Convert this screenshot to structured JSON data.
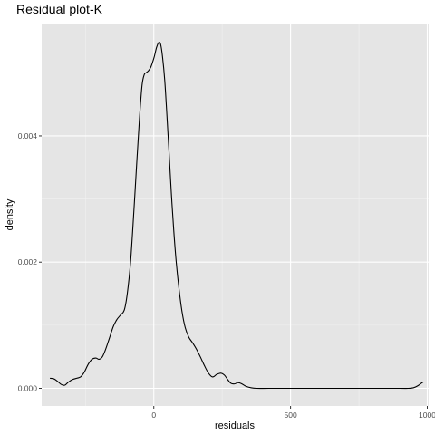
{
  "chart_data": {
    "type": "line",
    "title": "Residual plot-K",
    "xlabel": "residuals",
    "ylabel": "density",
    "xlim": [
      -410,
      1005
    ],
    "ylim": [
      -0.00028,
      0.00578
    ],
    "x_ticks": [
      0,
      500,
      1000
    ],
    "x_tick_labels": [
      "0",
      "500",
      "1000"
    ],
    "y_ticks": [
      0,
      0.002,
      0.004
    ],
    "y_tick_labels": [
      "0.000",
      "0.002",
      "0.004"
    ],
    "grid": true,
    "legend": "none",
    "colors": {
      "panel_background": "#e5e5e5",
      "grid_major": "#ffffff",
      "grid_minor": "#f2f2f2",
      "line": "#000000"
    },
    "series": [
      {
        "values": [
          [
            -380,
            0.00016
          ],
          [
            -365,
            0.00015
          ],
          [
            -352,
            0.00011
          ],
          [
            -338,
            6e-05
          ],
          [
            -325,
            5e-05
          ],
          [
            -312,
            0.0001
          ],
          [
            -297,
            0.00014
          ],
          [
            -282,
            0.00016
          ],
          [
            -268,
            0.00018
          ],
          [
            -255,
            0.00025
          ],
          [
            -240,
            0.00038
          ],
          [
            -226,
            0.00046
          ],
          [
            -212,
            0.00048
          ],
          [
            -200,
            0.00046
          ],
          [
            -188,
            0.0005
          ],
          [
            -176,
            0.00062
          ],
          [
            -162,
            0.0008
          ],
          [
            -148,
            0.00098
          ],
          [
            -135,
            0.00109
          ],
          [
            -122,
            0.00116
          ],
          [
            -108,
            0.00124
          ],
          [
            -97,
            0.0015
          ],
          [
            -85,
            0.002
          ],
          [
            -73,
            0.0028
          ],
          [
            -62,
            0.0036
          ],
          [
            -52,
            0.0043
          ],
          [
            -43,
            0.0048
          ],
          [
            -35,
            0.00497
          ],
          [
            -28,
            0.005
          ],
          [
            -20,
            0.00503
          ],
          [
            -12,
            0.00508
          ],
          [
            -5,
            0.00516
          ],
          [
            2,
            0.00526
          ],
          [
            10,
            0.0054
          ],
          [
            18,
            0.00548
          ],
          [
            25,
            0.00545
          ],
          [
            32,
            0.00525
          ],
          [
            40,
            0.00488
          ],
          [
            48,
            0.00432
          ],
          [
            56,
            0.00372
          ],
          [
            64,
            0.0031
          ],
          [
            73,
            0.0025
          ],
          [
            82,
            0.002
          ],
          [
            92,
            0.00158
          ],
          [
            103,
            0.00122
          ],
          [
            115,
            0.00096
          ],
          [
            128,
            0.00081
          ],
          [
            142,
            0.00072
          ],
          [
            156,
            0.00062
          ],
          [
            170,
            0.0005
          ],
          [
            185,
            0.00036
          ],
          [
            200,
            0.00024
          ],
          [
            215,
            0.00018
          ],
          [
            230,
            0.00022
          ],
          [
            245,
            0.00024
          ],
          [
            258,
            0.00021
          ],
          [
            270,
            0.00014
          ],
          [
            282,
            8e-05
          ],
          [
            295,
            7e-05
          ],
          [
            308,
            9e-05
          ],
          [
            322,
            7e-05
          ],
          [
            338,
            3e-05
          ],
          [
            355,
            1e-05
          ],
          [
            375,
            0.0
          ],
          [
            420,
            0.0
          ],
          [
            500,
            0.0
          ],
          [
            600,
            0.0
          ],
          [
            700,
            0.0
          ],
          [
            800,
            0.0
          ],
          [
            900,
            0.0
          ],
          [
            930,
            0.0
          ],
          [
            950,
            1e-05
          ],
          [
            965,
            4e-05
          ],
          [
            978,
            8e-05
          ],
          [
            985,
            0.0001
          ]
        ]
      }
    ]
  }
}
